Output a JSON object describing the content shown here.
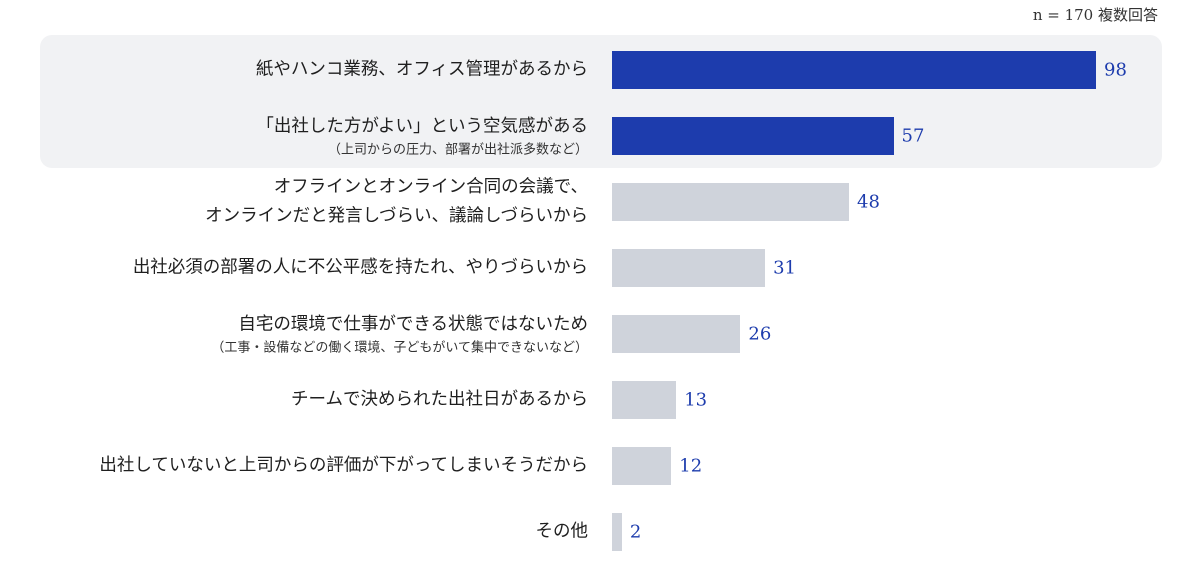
{
  "note": "n = 170 複数回答",
  "chart_data": {
    "type": "bar",
    "orientation": "horizontal",
    "xlim": [
      0,
      100
    ],
    "highlight_color": "#1d3cad",
    "default_color": "#cfd3db",
    "categories": [
      {
        "lines": [
          "紙やハンコ業務、オフィス管理があるから"
        ],
        "sub": "",
        "value": 98,
        "highlight": true
      },
      {
        "lines": [
          "「出社した方がよい」という空気感がある"
        ],
        "sub": "（上司からの圧力、部署が出社派多数など）",
        "value": 57,
        "highlight": true
      },
      {
        "lines": [
          "オフラインとオンライン合同の会議で、",
          "オンラインだと発言しづらい、議論しづらいから"
        ],
        "sub": "",
        "value": 48,
        "highlight": false
      },
      {
        "lines": [
          "出社必須の部署の人に不公平感を持たれ、やりづらいから"
        ],
        "sub": "",
        "value": 31,
        "highlight": false
      },
      {
        "lines": [
          "自宅の環境で仕事ができる状態ではないため"
        ],
        "sub": "（工事・設備などの働く環境、子どもがいて集中できないなど）",
        "value": 26,
        "highlight": false
      },
      {
        "lines": [
          "チームで決められた出社日があるから"
        ],
        "sub": "",
        "value": 13,
        "highlight": false
      },
      {
        "lines": [
          "出社していないと上司からの評価が下がってしまいそうだから"
        ],
        "sub": "",
        "value": 12,
        "highlight": false
      },
      {
        "lines": [
          "その他"
        ],
        "sub": "",
        "value": 2,
        "highlight": false
      }
    ]
  }
}
